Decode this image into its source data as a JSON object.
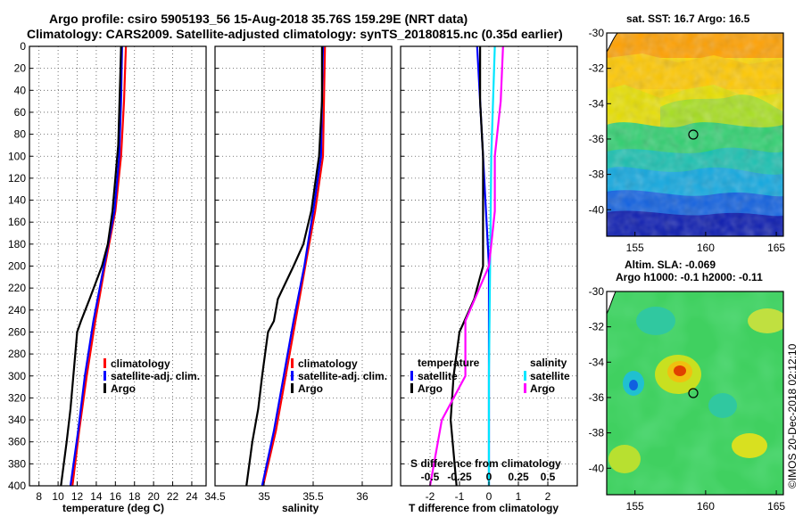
{
  "header": {
    "title_line1": "Argo profile: csiro 5905193_56 15-Aug-2018 35.76S 159.29E (NRT data)",
    "title_line2": "Climatology: CARS2009. Satellite-adjusted climatology: synTS_20180815.nc (0.35d earlier)"
  },
  "footer_credit": "©IMOS 20-Dec-2018 02:12:10",
  "colors": {
    "climatology": "#ff0000",
    "satellite": "#0000ff",
    "argo": "#000000",
    "sal_satellite": "#00e6ff",
    "sal_clim": "#ff00ff"
  },
  "chart_data": [
    {
      "type": "line",
      "name": "temperature",
      "xlabel": "temperature (deg C)",
      "ylabel": "",
      "xlim": [
        7,
        25.5
      ],
      "ylim": [
        400,
        0
      ],
      "xticks": [
        8,
        10,
        12,
        14,
        16,
        18,
        20,
        22,
        24
      ],
      "yticks": [
        0,
        20,
        40,
        60,
        80,
        100,
        120,
        140,
        160,
        180,
        200,
        220,
        240,
        260,
        280,
        300,
        320,
        340,
        360,
        380,
        400
      ],
      "legend": [
        "climatology",
        "satellite-adj. clim.",
        "Argo"
      ],
      "series": [
        {
          "name": "climatology",
          "color": "#ff0000",
          "depth": [
            0,
            50,
            100,
            150,
            200,
            250,
            300,
            350,
            400
          ],
          "values": [
            17.1,
            16.9,
            16.6,
            16.0,
            14.9,
            13.9,
            13.0,
            12.2,
            11.5
          ]
        },
        {
          "name": "satellite-adj. clim.",
          "color": "#0000ff",
          "depth": [
            0,
            50,
            100,
            150,
            200,
            250,
            300,
            350,
            400
          ],
          "values": [
            16.7,
            16.6,
            16.4,
            15.9,
            14.8,
            13.7,
            12.8,
            12.1,
            11.3
          ]
        },
        {
          "name": "Argo",
          "color": "#000000",
          "depth": [
            0,
            30,
            60,
            90,
            120,
            150,
            180,
            200,
            230,
            250,
            260,
            300,
            330,
            360,
            400
          ],
          "values": [
            16.6,
            16.5,
            16.4,
            16.3,
            16.0,
            15.7,
            15.2,
            14.6,
            13.3,
            12.4,
            12.0,
            11.6,
            11.3,
            10.9,
            10.3
          ]
        }
      ]
    },
    {
      "type": "line",
      "name": "salinity",
      "xlabel": "salinity",
      "ylabel": "",
      "xlim": [
        34.5,
        36.3
      ],
      "ylim": [
        400,
        0
      ],
      "xticks": [
        34.5,
        35,
        35.5,
        36
      ],
      "legend": [
        "climatology",
        "satellite-adj. clim.",
        "Argo"
      ],
      "series": [
        {
          "name": "climatology",
          "color": "#ff0000",
          "depth": [
            0,
            100,
            150,
            200,
            250,
            300,
            350,
            400
          ],
          "values": [
            35.62,
            35.6,
            35.52,
            35.42,
            35.32,
            35.22,
            35.12,
            34.99
          ]
        },
        {
          "name": "satellite-adj. clim.",
          "color": "#0000ff",
          "depth": [
            0,
            100,
            150,
            200,
            250,
            300,
            350,
            400
          ],
          "values": [
            35.6,
            35.58,
            35.5,
            35.41,
            35.3,
            35.2,
            35.1,
            34.98
          ]
        },
        {
          "name": "Argo",
          "color": "#000000",
          "depth": [
            0,
            50,
            100,
            150,
            180,
            200,
            230,
            250,
            260,
            300,
            330,
            360,
            400
          ],
          "values": [
            35.59,
            35.59,
            35.56,
            35.48,
            35.4,
            35.3,
            35.14,
            35.1,
            35.04,
            34.98,
            34.94,
            34.88,
            34.82
          ]
        }
      ]
    },
    {
      "type": "line",
      "name": "difference",
      "xlabel": "T difference from climatology",
      "xlabel_top": "S difference from climatology",
      "xlim": [
        -3,
        3
      ],
      "ylim": [
        400,
        0
      ],
      "xticks": [
        -2,
        -1,
        0,
        1,
        2
      ],
      "xtick_labels_top": [
        "-0.5",
        "-0.25",
        "0",
        "0.25",
        "0.5"
      ],
      "legend_temperature_title": "temperature",
      "legend_salinity_title": "salinity",
      "legend": [
        "satellite",
        "Argo"
      ],
      "series": [
        {
          "name": "T satellite",
          "color": "#0000ff",
          "depth": [
            0,
            50,
            100,
            150,
            200,
            250,
            300,
            400
          ],
          "values": [
            -0.4,
            -0.3,
            -0.2,
            -0.1,
            0.0,
            0.0,
            0.0,
            0.0
          ]
        },
        {
          "name": "T Argo",
          "color": "#000000",
          "depth": [
            0,
            50,
            100,
            150,
            200,
            230,
            260,
            300,
            340,
            400
          ],
          "values": [
            -0.3,
            -0.3,
            -0.2,
            -0.2,
            -0.2,
            -0.5,
            -1.0,
            -1.2,
            -1.3,
            -1.1
          ]
        },
        {
          "name": "S satellite",
          "color": "#00e6ff",
          "depth": [
            0,
            100,
            200,
            300,
            400
          ],
          "values": [
            0.05,
            0.02,
            0.01,
            0.0,
            0.0
          ]
        },
        {
          "name": "S Argo",
          "color": "#ff00ff",
          "depth": [
            0,
            50,
            100,
            150,
            200,
            250,
            300,
            340,
            400
          ],
          "values": [
            0.12,
            0.1,
            0.05,
            0.05,
            0.0,
            -0.2,
            -0.2,
            -0.4,
            -0.5
          ]
        }
      ]
    },
    {
      "type": "heatmap",
      "name": "sst-map",
      "title": "sat. SST: 16.7 Argo: 16.5",
      "xlim": [
        153,
        165.5
      ],
      "ylim": [
        -41.5,
        -30
      ],
      "xticks": [
        155,
        160,
        165
      ],
      "yticks": [
        -30,
        -32,
        -34,
        -36,
        -38,
        -40
      ],
      "marker": {
        "lon": 159.29,
        "lat": -35.76
      }
    },
    {
      "type": "heatmap",
      "name": "sla-map",
      "title_line1": "Altim. SLA: -0.069",
      "title_line2": "Argo h1000: -0.1 h2000: -0.11",
      "xlim": [
        153,
        165.5
      ],
      "ylim": [
        -41.5,
        -30
      ],
      "xticks": [
        155,
        160,
        165
      ],
      "yticks": [
        -30,
        -32,
        -34,
        -36,
        -38,
        -40
      ],
      "marker": {
        "lon": 159.29,
        "lat": -35.76
      }
    }
  ]
}
